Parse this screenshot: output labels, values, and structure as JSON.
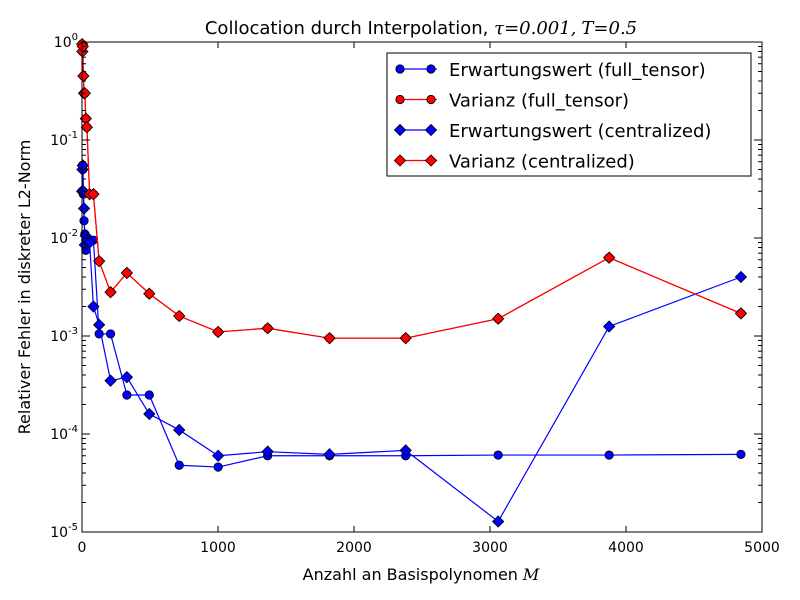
{
  "chart_data": {
    "type": "line",
    "title": "Collocation durch Interpolation, τ = 0.001, T = 0.5",
    "title_parts": {
      "text": "Collocation durch Interpolation, ",
      "tau_symbol": "τ",
      "tau_value": "=0.001,",
      "t_symbol": "T",
      "t_value": "=0.5"
    },
    "xlabel": "Anzahl an Basispolynomen",
    "xlabel_symbol": "M",
    "ylabel": "Relativer Fehler in diskreter L2-Norm",
    "xlim": [
      0,
      5000
    ],
    "ylim": [
      1e-05,
      1
    ],
    "yscale": "log",
    "grid": false,
    "legend_position": "top-right",
    "x_ticks": [
      "0",
      "1000",
      "2000",
      "3000",
      "4000",
      "5000"
    ],
    "y_ticks": [
      {
        "value": 1,
        "base": "10",
        "exp": "0"
      },
      {
        "value": 0.1,
        "base": "10",
        "exp": "-1"
      },
      {
        "value": 0.01,
        "base": "10",
        "exp": "-2"
      },
      {
        "value": 0.001,
        "base": "10",
        "exp": "-3"
      },
      {
        "value": 0.0001,
        "base": "10",
        "exp": "-4"
      },
      {
        "value": 1e-05,
        "base": "10",
        "exp": "-5"
      }
    ],
    "series": [
      {
        "name": "Erwartungswert (full_tensor)",
        "color": "#0000ff",
        "marker": "circle",
        "x": [
          1,
          3,
          6,
          10,
          15,
          21,
          28,
          36,
          56,
          84,
          126,
          210,
          330,
          495,
          715,
          1001,
          1365,
          1820,
          2380,
          3060,
          3876,
          4845
        ],
        "y": [
          0.03,
          0.055,
          0.05,
          0.028,
          0.015,
          0.011,
          0.0075,
          0.009,
          0.0095,
          0.0095,
          0.00105,
          0.00105,
          0.00025,
          0.00025,
          4.8e-05,
          4.6e-05,
          6e-05,
          6e-05,
          6e-05,
          6.1e-05,
          6.1e-05,
          6.2e-05
        ]
      },
      {
        "name": "Varianz (full_tensor)",
        "color": "#ff0000",
        "marker": "circle",
        "x": [
          1,
          3,
          6,
          10,
          15,
          21,
          28,
          36,
          56,
          84,
          126,
          210,
          330,
          495,
          715,
          1001,
          1365,
          1820,
          2380,
          3060,
          3876,
          4845
        ],
        "y": [
          0.95,
          0.8,
          0.9,
          0.45,
          0.3,
          0.3,
          0.165,
          0.135,
          0.028,
          0.028,
          0.0058,
          0.0028,
          0.0044,
          0.0027,
          0.0016,
          0.0011,
          0.0012,
          0.00095,
          0.00095,
          0.0015,
          0.0063,
          0.0017
        ]
      },
      {
        "name": "Erwartungswert (centralized)",
        "color": "#0000ff",
        "marker": "diamond",
        "x": [
          1,
          3,
          6,
          10,
          15,
          21,
          28,
          36,
          56,
          84,
          126,
          210,
          330,
          495,
          715,
          1001,
          1365,
          1820,
          2380,
          3060,
          3876,
          4845
        ],
        "y": [
          0.03,
          0.05,
          0.055,
          0.03,
          0.02,
          0.0085,
          0.0105,
          0.0095,
          0.009,
          0.002,
          0.0013,
          0.00035,
          0.00038,
          0.00016,
          0.00011,
          6e-05,
          6.6e-05,
          6.2e-05,
          6.8e-05,
          1.28e-05,
          0.00125,
          0.004
        ]
      },
      {
        "name": "Varianz (centralized)",
        "color": "#ff0000",
        "marker": "diamond",
        "x": [
          1,
          3,
          6,
          10,
          15,
          21,
          28,
          36,
          56,
          84,
          126,
          210,
          330,
          495,
          715,
          1001,
          1365,
          1820,
          2380,
          3060,
          3876,
          4845
        ],
        "y": [
          0.95,
          0.8,
          0.9,
          0.45,
          0.3,
          0.3,
          0.165,
          0.135,
          0.028,
          0.028,
          0.0058,
          0.0028,
          0.0044,
          0.0027,
          0.0016,
          0.0011,
          0.0012,
          0.00095,
          0.00095,
          0.0015,
          0.0063,
          0.0017
        ]
      }
    ]
  }
}
